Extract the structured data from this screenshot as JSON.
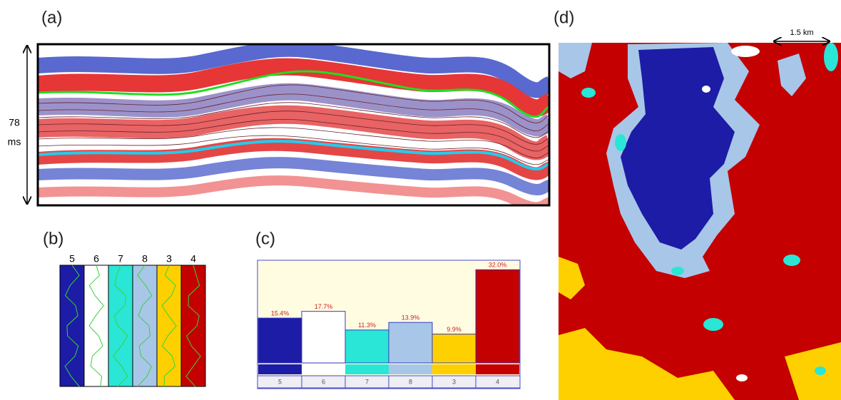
{
  "panels": {
    "a": "(a)",
    "b": "(b)",
    "c": "(c)",
    "d": "(d)"
  },
  "seismic": {
    "thickness": "78",
    "unit": "ms"
  },
  "map": {
    "scale": "1.5 km"
  },
  "facies_panel": {
    "labels": [
      "5",
      "6",
      "7",
      "8",
      "3",
      "4"
    ]
  },
  "chart_data": {
    "type": "bar",
    "categories": [
      "5",
      "6",
      "7",
      "8",
      "3",
      "4"
    ],
    "values": [
      15.4,
      17.7,
      11.3,
      13.9,
      9.9,
      32.0
    ],
    "value_labels": [
      "15.4%",
      "17.7%",
      "11.3%",
      "13.9%",
      "9.9%",
      "32.0%"
    ],
    "colors": [
      "#1c1ca6",
      "#ffffff",
      "#2ae6d6",
      "#a8c6e8",
      "#ffd000",
      "#c40000"
    ],
    "ylim": [
      0,
      35
    ]
  }
}
